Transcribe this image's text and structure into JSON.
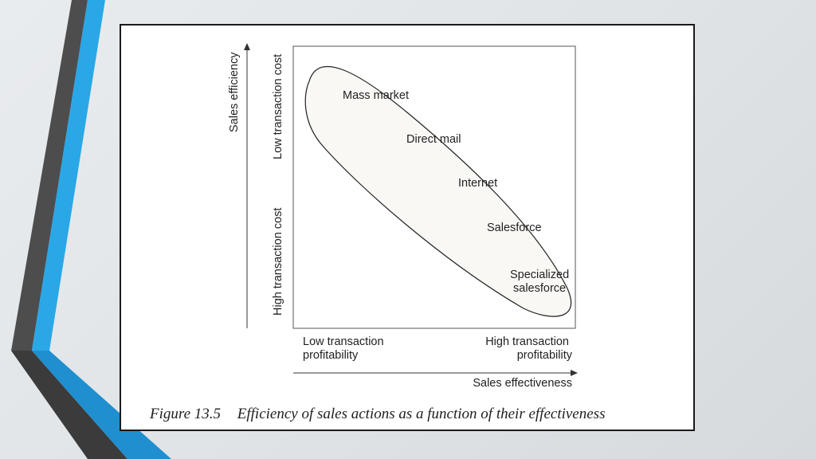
{
  "figure": {
    "y_axis_title": "Sales efficiency",
    "y_top_label": "Low transaction cost",
    "y_bottom_label": "High transaction cost",
    "x_axis_title": "Sales effectiveness",
    "x_left_label": [
      "Low transaction",
      "profitability"
    ],
    "x_right_label": [
      "High transaction",
      "profitability"
    ],
    "items": [
      {
        "label": [
          "Mass market"
        ]
      },
      {
        "label": [
          "Direct mail"
        ]
      },
      {
        "label": [
          "Internet"
        ]
      },
      {
        "label": [
          "Salesforce"
        ]
      },
      {
        "label": [
          "Specialized",
          "salesforce"
        ]
      }
    ],
    "caption_number": "Figure 13.5",
    "caption_text": "Efficiency of sales actions as a function of their effectiveness"
  },
  "colors": {
    "accent_blue": "#2aa7e6",
    "stripe_dark": "#4a4a4a",
    "ellipse_fill": "#faf8f5"
  }
}
